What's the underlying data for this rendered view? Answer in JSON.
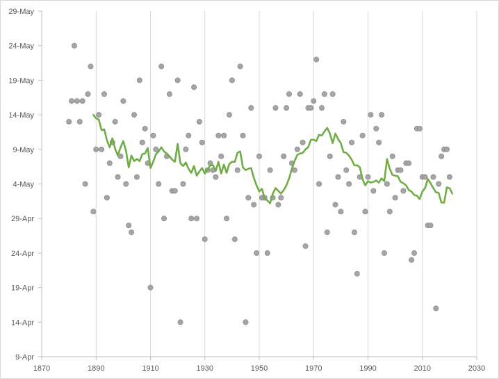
{
  "chart_data": {
    "type": "scatter",
    "title": "",
    "xlabel": "",
    "ylabel": "",
    "xlim": [
      1870,
      2030
    ],
    "ylim_dates": [
      "9-Apr",
      "29-May"
    ],
    "ylim_days": [
      0,
      50
    ],
    "x_ticks": [
      "1870",
      "1890",
      "1910",
      "1930",
      "1950",
      "1970",
      "1990",
      "2010",
      "2030"
    ],
    "y_ticks": [
      "9-Apr",
      "14-Apr",
      "19-Apr",
      "24-Apr",
      "29-Apr",
      "4-May",
      "9-May",
      "14-May",
      "19-May",
      "24-May",
      "29-May"
    ],
    "grid": "vertical",
    "legend": "none",
    "colors": {
      "points": "#a5a5a5",
      "points_edge": "#8c8c8c",
      "trend": "#70ad47",
      "grid": "#d9d9d9"
    },
    "series": [
      {
        "type": "scatter",
        "x": [
          1880,
          1881,
          1882,
          1883,
          1884,
          1885,
          1886,
          1887,
          1888,
          1889,
          1890,
          1891,
          1892,
          1893,
          1894,
          1895,
          1896,
          1897,
          1898,
          1899,
          1900,
          1901,
          1902,
          1903,
          1904,
          1905,
          1906,
          1907,
          1908,
          1909,
          1910,
          1911,
          1912,
          1913,
          1914,
          1915,
          1916,
          1917,
          1918,
          1919,
          1920,
          1921,
          1922,
          1923,
          1924,
          1925,
          1926,
          1927,
          1928,
          1929,
          1930,
          1931,
          1932,
          1933,
          1934,
          1935,
          1936,
          1937,
          1938,
          1939,
          1940,
          1941,
          1942,
          1943,
          1944,
          1945,
          1946,
          1947,
          1948,
          1949,
          1950,
          1951,
          1952,
          1953,
          1954,
          1955,
          1956,
          1957,
          1958,
          1959,
          1960,
          1961,
          1962,
          1963,
          1964,
          1965,
          1966,
          1967,
          1968,
          1969,
          1970,
          1971,
          1972,
          1973,
          1974,
          1975,
          1976,
          1977,
          1978,
          1979,
          1980,
          1981,
          1982,
          1983,
          1984,
          1985,
          1986,
          1987,
          1988,
          1989,
          1990,
          1991,
          1992,
          1993,
          1994,
          1995,
          1996,
          1997,
          1998,
          1999,
          2000,
          2001,
          2002,
          2003,
          2004,
          2005,
          2006,
          2007,
          2008,
          2009,
          2010,
          2011,
          2012,
          2013,
          2014,
          2015,
          2016,
          2017,
          2018,
          2019,
          2020
        ],
        "y": [
          34,
          37,
          45,
          37,
          34,
          37,
          25,
          38,
          42,
          21,
          30,
          35,
          30,
          38,
          23,
          28,
          31,
          34,
          26,
          29,
          37,
          25,
          19,
          18,
          35,
          26,
          40,
          31,
          33,
          28,
          10,
          32,
          30,
          25,
          42,
          20,
          29,
          38,
          24,
          24,
          40,
          5,
          25,
          30,
          32,
          20,
          39,
          20,
          34,
          31,
          17,
          27,
          28,
          27,
          26,
          32,
          29,
          32,
          20,
          35,
          40,
          17,
          27,
          42,
          32,
          5,
          23,
          36,
          22,
          15,
          29,
          23,
          23,
          15,
          27,
          23,
          36,
          22,
          23,
          29,
          36,
          38,
          28,
          27,
          30,
          38,
          31,
          16,
          36,
          36,
          37,
          43,
          25,
          36,
          38,
          18,
          29,
          38,
          22,
          26,
          21,
          34,
          27,
          25,
          31,
          18,
          12,
          26,
          32,
          21,
          26,
          35,
          24,
          33,
          31,
          35,
          15,
          25,
          21,
          29,
          23,
          27,
          27,
          24,
          28,
          28,
          14,
          15,
          33,
          33,
          26,
          26,
          19,
          19,
          26,
          7,
          25,
          29,
          30,
          30,
          26
        ]
      },
      {
        "type": "line",
        "x": [
          1889,
          1890,
          1891,
          1892,
          1893,
          1894,
          1895,
          1896,
          1897,
          1898,
          1899,
          1900,
          1901,
          1902,
          1903,
          1904,
          1905,
          1906,
          1907,
          1908,
          1909,
          1910,
          1911,
          1912,
          1913,
          1914,
          1915,
          1916,
          1917,
          1918,
          1919,
          1920,
          1921,
          1922,
          1923,
          1924,
          1925,
          1926,
          1927,
          1928,
          1929,
          1930,
          1931,
          1932,
          1933,
          1934,
          1935,
          1936,
          1937,
          1938,
          1939,
          1940,
          1941,
          1942,
          1943,
          1944,
          1945,
          1946,
          1947,
          1948,
          1949,
          1950,
          1951,
          1952,
          1953,
          1954,
          1955,
          1956,
          1957,
          1958,
          1959,
          1960,
          1961,
          1962,
          1963,
          1964,
          1965,
          1966,
          1967,
          1968,
          1969,
          1970,
          1971,
          1972,
          1973,
          1974,
          1975,
          1976,
          1977,
          1978,
          1979,
          1980,
          1981,
          1982,
          1983,
          1984,
          1985,
          1986,
          1987,
          1988,
          1989,
          1990,
          1991,
          1992,
          1993,
          1994,
          1995,
          1996,
          1997,
          1998,
          1999,
          2000,
          2001,
          2002,
          2003,
          2004,
          2005,
          2006,
          2007,
          2008,
          2009,
          2010,
          2011,
          2012,
          2013,
          2014,
          2015,
          2016,
          2017,
          2018,
          2019,
          2020,
          2021
        ],
        "y": [
          35,
          34.5,
          34.3,
          32.8,
          32.9,
          31.3,
          30.3,
          31.6,
          30.1,
          29.1,
          30.3,
          31.2,
          29.8,
          27.4,
          29.1,
          28.3,
          28.6,
          28.3,
          29.3,
          29.4,
          30.2,
          27.3,
          28.2,
          29.3,
          29.7,
          30.3,
          29.7,
          29.4,
          29.0,
          28.5,
          28.2,
          30.8,
          28.0,
          27.6,
          28.1,
          27.2,
          26.6,
          27.6,
          26.2,
          26.8,
          27.3,
          26.5,
          27.1,
          27.7,
          27.7,
          26.9,
          28.2,
          26.5,
          27.8,
          26.6,
          27.9,
          28.2,
          28.2,
          29.5,
          29.7,
          27.4,
          27.0,
          27.2,
          27.3,
          25.9,
          24.8,
          23.9,
          24.3,
          22.9,
          22.6,
          22.2,
          23.6,
          24.4,
          24.0,
          23.6,
          24.1,
          24.8,
          25.8,
          27.2,
          28.3,
          29.2,
          29.4,
          29.5,
          30.0,
          30.3,
          31.4,
          31.4,
          31.2,
          32.1,
          32.0,
          32.6,
          33.1,
          32.3,
          30.9,
          32.3,
          31.5,
          30.9,
          29.6,
          29.5,
          29.1,
          28.5,
          27.7,
          27.7,
          27.4,
          25.7,
          24.8,
          25.4,
          25.2,
          25.3,
          25.5,
          25.2,
          25.8,
          25.4,
          28.6,
          27.2,
          26.3,
          26.2,
          26.1,
          25.3,
          25.1,
          24.8,
          24.1,
          23.9,
          23.4,
          23.3,
          22.8,
          23.9,
          24.4,
          25.7,
          25.1,
          24.4,
          23.8,
          23.7,
          22.3,
          22.3,
          24.5,
          24.4,
          23.6
        ]
      }
    ]
  }
}
